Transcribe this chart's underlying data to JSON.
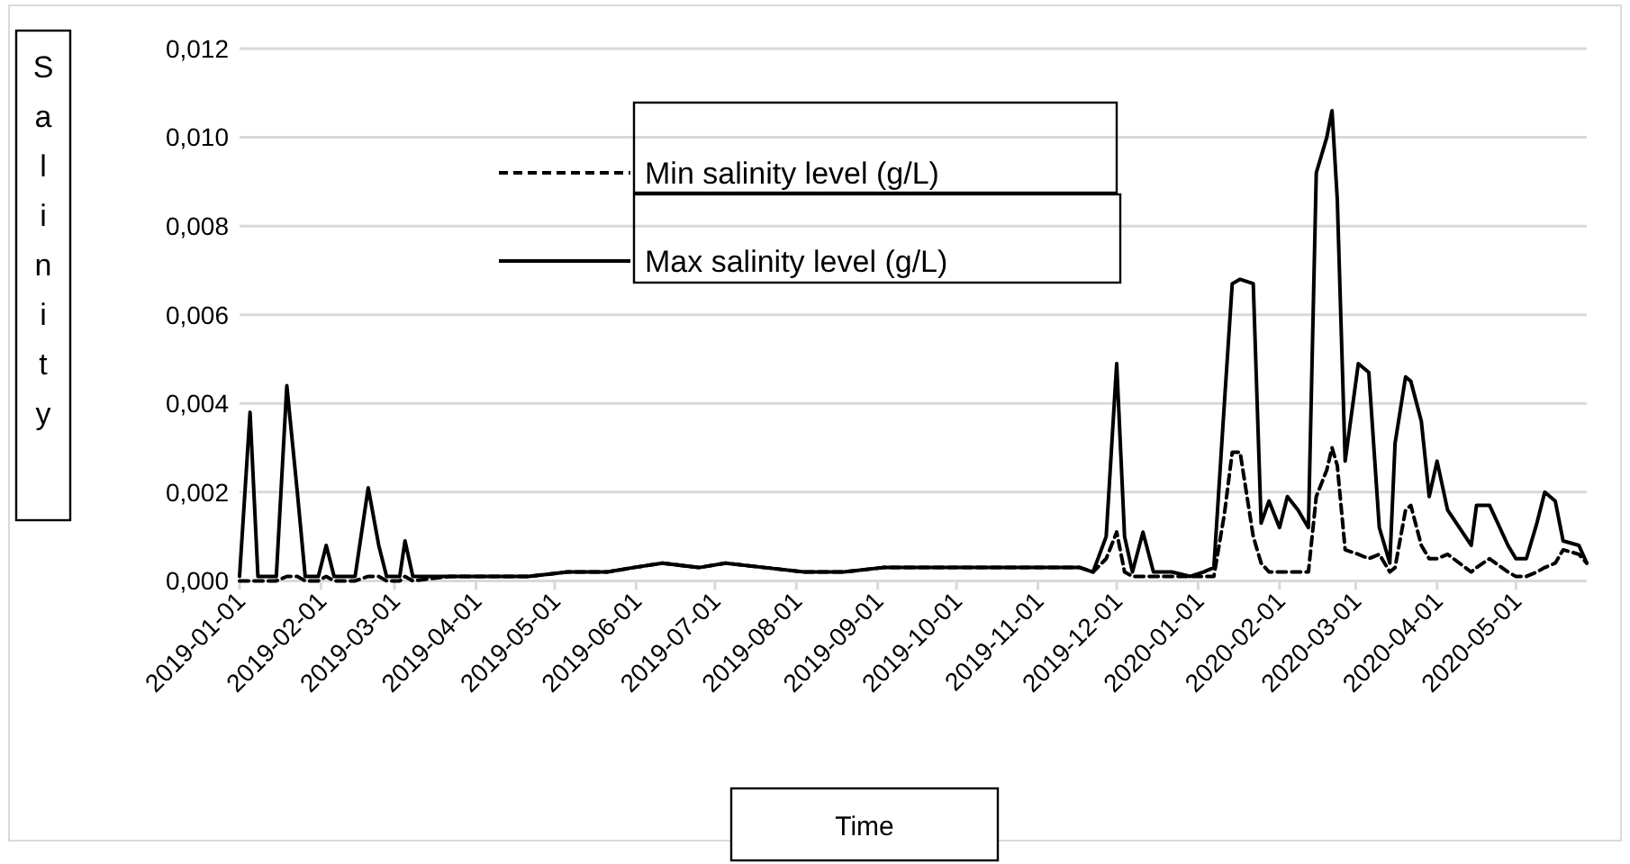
{
  "chart_data": {
    "type": "line",
    "xlabel": "Time",
    "ylabel": "Salinity",
    "legend": "top",
    "grid": "y",
    "x": [
      "2019-01-01",
      "2019-01-05",
      "2019-01-08",
      "2019-01-15",
      "2019-01-19",
      "2019-01-23",
      "2019-01-26",
      "2019-01-31",
      "2019-02-03",
      "2019-02-06",
      "2019-02-14",
      "2019-02-19",
      "2019-02-23",
      "2019-02-26",
      "2019-03-03",
      "2019-03-05",
      "2019-03-08",
      "2019-03-22",
      "2019-04-06",
      "2019-04-21",
      "2019-05-06",
      "2019-05-21",
      "2019-05-31",
      "2019-06-11",
      "2019-06-25",
      "2019-07-05",
      "2019-07-20",
      "2019-08-04",
      "2019-08-19",
      "2019-09-03",
      "2019-09-18",
      "2019-10-08",
      "2019-10-28",
      "2019-11-17",
      "2019-11-22",
      "2019-11-27",
      "2019-12-01",
      "2019-12-04",
      "2019-12-07",
      "2019-12-11",
      "2019-12-15",
      "2019-12-22",
      "2019-12-29",
      "2020-01-03",
      "2020-01-07",
      "2020-01-11",
      "2020-01-14",
      "2020-01-17",
      "2020-01-22",
      "2020-01-25",
      "2020-01-28",
      "2020-02-01",
      "2020-02-04",
      "2020-02-08",
      "2020-02-12",
      "2020-02-15",
      "2020-02-19",
      "2020-02-21",
      "2020-02-23",
      "2020-02-26",
      "2020-03-02",
      "2020-03-06",
      "2020-03-10",
      "2020-03-14",
      "2020-03-16",
      "2020-03-20",
      "2020-03-22",
      "2020-03-26",
      "2020-03-29",
      "2020-04-01",
      "2020-04-05",
      "2020-04-14",
      "2020-04-16",
      "2020-04-21",
      "2020-04-28",
      "2020-05-01",
      "2020-05-05",
      "2020-05-09",
      "2020-05-12",
      "2020-05-16",
      "2020-05-19",
      "2020-05-25",
      "2020-05-28"
    ],
    "series": [
      {
        "name": "Min salinity level (g/L)",
        "color": "#000000",
        "line_style": "dashed",
        "values": [
          0,
          0,
          0,
          0,
          0.0001,
          0.0001,
          0,
          0,
          0.0001,
          0,
          0,
          0.0001,
          0.0001,
          0,
          0,
          0.0001,
          0,
          0.0001,
          0.0001,
          0.0001,
          0.0002,
          0.0002,
          0.0003,
          0.0004,
          0.0003,
          0.0004,
          0.0003,
          0.0002,
          0.0002,
          0.0003,
          0.0003,
          0.0003,
          0.0003,
          0.0003,
          0.0002,
          0.0005,
          0.0011,
          0.0002,
          0.0001,
          0.0001,
          0.0001,
          0.0001,
          0.0001,
          0.0001,
          0.0001,
          0.0015,
          0.0029,
          0.0029,
          0.001,
          0.0004,
          0.0002,
          0.0002,
          0.0002,
          0.0002,
          0.0002,
          0.0019,
          0.0025,
          0.003,
          0.0026,
          0.0007,
          0.0006,
          0.0005,
          0.0006,
          0.0002,
          0.0003,
          0.0016,
          0.0017,
          0.0008,
          0.0005,
          0.0005,
          0.0006,
          0.0002,
          0.0003,
          0.0005,
          0.0002,
          0.0001,
          0.0001,
          0.0002,
          0.0003,
          0.0004,
          0.0007,
          0.0006,
          0.0004
        ]
      },
      {
        "name": "Max salinity level (g/L)",
        "color": "#000000",
        "line_style": "solid",
        "values": [
          0.0001,
          0.0038,
          0.0001,
          0.0001,
          0.0044,
          0.002,
          0.0001,
          0.0001,
          0.0008,
          0.0001,
          0.0001,
          0.0021,
          0.0008,
          0.0001,
          0.0001,
          0.0009,
          0.0001,
          0.0001,
          0.0001,
          0.0001,
          0.0002,
          0.0002,
          0.0003,
          0.0004,
          0.0003,
          0.0004,
          0.0003,
          0.0002,
          0.0002,
          0.0003,
          0.0003,
          0.0003,
          0.0003,
          0.0003,
          0.0002,
          0.001,
          0.0049,
          0.001,
          0.0002,
          0.0011,
          0.0002,
          0.0002,
          0.0001,
          0.0002,
          0.0003,
          0.004,
          0.0067,
          0.0068,
          0.0067,
          0.0013,
          0.0018,
          0.0012,
          0.0019,
          0.0016,
          0.0012,
          0.0092,
          0.01,
          0.0106,
          0.0086,
          0.0027,
          0.0049,
          0.0047,
          0.0012,
          0.0004,
          0.0031,
          0.0046,
          0.0045,
          0.0036,
          0.0019,
          0.0027,
          0.0016,
          0.0008,
          0.0017,
          0.0017,
          0.0008,
          0.0005,
          0.0005,
          0.0013,
          0.002,
          0.0018,
          0.0009,
          0.0008,
          0.0004
        ]
      }
    ],
    "xlim": [
      "2019-01-01",
      "2020-05-28"
    ],
    "xticks": [
      {
        "value": "2019-01-01",
        "label": "2019-01-01"
      },
      {
        "value": "2019-02-01",
        "label": "2019-02-01"
      },
      {
        "value": "2019-03-01",
        "label": "2019-03-01"
      },
      {
        "value": "2019-04-01",
        "label": "2019-04-01"
      },
      {
        "value": "2019-05-01",
        "label": "2019-05-01"
      },
      {
        "value": "2019-06-01",
        "label": "2019-06-01"
      },
      {
        "value": "2019-07-01",
        "label": "2019-07-01"
      },
      {
        "value": "2019-08-01",
        "label": "2019-08-01"
      },
      {
        "value": "2019-09-01",
        "label": "2019-09-01"
      },
      {
        "value": "2019-10-01",
        "label": "2019-10-01"
      },
      {
        "value": "2019-11-01",
        "label": "2019-11-01"
      },
      {
        "value": "2019-12-01",
        "label": "2019-12-01"
      },
      {
        "value": "2020-01-01",
        "label": "2020-01-01"
      },
      {
        "value": "2020-02-01",
        "label": "2020-02-01"
      },
      {
        "value": "2020-03-01",
        "label": "2020-03-01"
      },
      {
        "value": "2020-04-01",
        "label": "2020-04-01"
      },
      {
        "value": "2020-05-01",
        "label": "2020-05-01"
      }
    ],
    "ylim": [
      0,
      0.012
    ],
    "yticks": [
      {
        "value": 0,
        "label": "0,000"
      },
      {
        "value": 0.002,
        "label": "0,002"
      },
      {
        "value": 0.004,
        "label": "0,004"
      },
      {
        "value": 0.006,
        "label": "0,006"
      },
      {
        "value": 0.008,
        "label": "0,008"
      },
      {
        "value": 0.01,
        "label": "0,010"
      },
      {
        "value": 0.012,
        "label": "0,012"
      }
    ]
  }
}
